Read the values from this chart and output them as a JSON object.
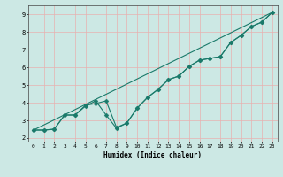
{
  "title": "",
  "xlabel": "Humidex (Indice chaleur)",
  "xlim": [
    -0.5,
    23.5
  ],
  "ylim": [
    1.8,
    9.5
  ],
  "xticks": [
    0,
    1,
    2,
    3,
    4,
    5,
    6,
    7,
    8,
    9,
    10,
    11,
    12,
    13,
    14,
    15,
    16,
    17,
    18,
    19,
    20,
    21,
    22,
    23
  ],
  "yticks": [
    2,
    3,
    4,
    5,
    6,
    7,
    8,
    9
  ],
  "bg_color": "#cce8e4",
  "grid_color_v": "#e8b0b0",
  "grid_color_h": "#e8b0b0",
  "line_color": "#1a7a6a",
  "line1_x": [
    0,
    1,
    2,
    3,
    4,
    5,
    6,
    7,
    8,
    9,
    10,
    11,
    12,
    13,
    14,
    15,
    16,
    17,
    18,
    19,
    20,
    21,
    22,
    23
  ],
  "line1_y": [
    2.45,
    2.45,
    2.5,
    3.3,
    3.3,
    3.85,
    3.95,
    4.1,
    2.6,
    2.85,
    3.7,
    4.3,
    4.75,
    5.3,
    5.5,
    6.05,
    6.4,
    6.5,
    6.6,
    7.4,
    7.8,
    8.3,
    8.55,
    9.1
  ],
  "line2_x": [
    0,
    1,
    2,
    3,
    4,
    5,
    6,
    7,
    8,
    9,
    10,
    11,
    12,
    13,
    14,
    15,
    16,
    17,
    18,
    19,
    20,
    21,
    22,
    23
  ],
  "line2_y": [
    2.45,
    2.45,
    2.5,
    3.3,
    3.3,
    3.8,
    4.1,
    3.3,
    2.55,
    2.85,
    3.7,
    4.3,
    4.75,
    5.3,
    5.5,
    6.05,
    6.4,
    6.5,
    6.6,
    7.4,
    7.8,
    8.3,
    8.55,
    9.1
  ],
  "line3_x": [
    0,
    23
  ],
  "line3_y": [
    2.45,
    9.1
  ],
  "marker": "D",
  "markersize": 2.5,
  "linewidth": 0.8
}
